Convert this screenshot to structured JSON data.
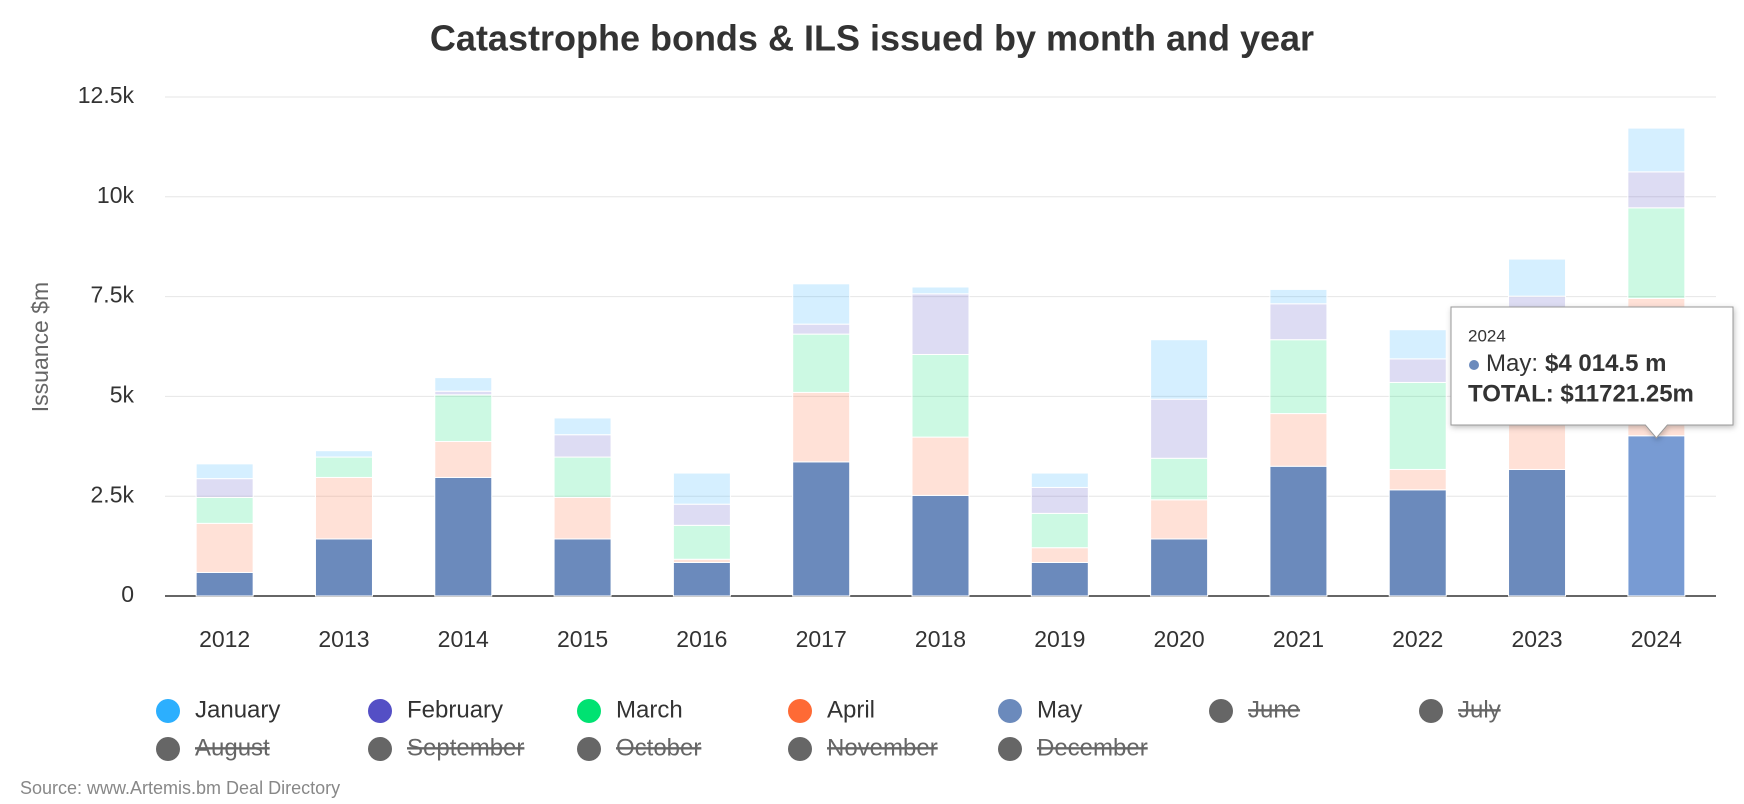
{
  "chart_data": {
    "type": "stacked_bar",
    "title": "Catastrophe bonds & ILS issued by month and year",
    "y_label": "Issuance $m",
    "source": "Source: www.Artemis.bm Deal Directory",
    "categories": [
      "2012",
      "2013",
      "2014",
      "2015",
      "2016",
      "2017",
      "2018",
      "2019",
      "2020",
      "2021",
      "2022",
      "2023",
      "2024"
    ],
    "ylim": [
      0,
      12500
    ],
    "yticks": [
      0,
      {
        "value": 2500,
        "label": "2.5k"
      },
      {
        "value": 5000,
        "label": "5k"
      },
      {
        "value": 7500,
        "label": "7.5k"
      },
      {
        "value": 10000,
        "label": "10k"
      },
      {
        "value": 12500,
        "label": "12.5k"
      }
    ],
    "grid": true,
    "series": [
      {
        "name": "January",
        "color": "#2caffe",
        "visible": true,
        "values": [
          370,
          160,
          340,
          420,
          780,
          1010,
          170,
          360,
          1490,
          360,
          730,
          930,
          1096.75
        ]
      },
      {
        "name": "February",
        "color": "#544fc5",
        "visible": true,
        "values": [
          470,
          0,
          90,
          560,
          530,
          250,
          1520,
          650,
          1480,
          900,
          590,
          740,
          900
        ]
      },
      {
        "name": "March",
        "color": "#00e272",
        "visible": true,
        "values": [
          650,
          510,
          1170,
          1010,
          850,
          1460,
          2070,
          860,
          1040,
          1850,
          2180,
          2100,
          2270
        ]
      },
      {
        "name": "April",
        "color": "#fe6a35",
        "visible": true,
        "values": [
          1230,
          1540,
          900,
          1040,
          80,
          1740,
          1460,
          370,
          980,
          1320,
          510,
          1500,
          3440
        ]
      },
      {
        "name": "May",
        "color": "#6b8abc",
        "visible": true,
        "values": [
          590,
          1430,
          2970,
          1430,
          840,
          3360,
          2520,
          840,
          1430,
          3250,
          2660,
          3170,
          4014.5
        ]
      },
      {
        "name": "June",
        "visible": false
      },
      {
        "name": "July",
        "visible": false
      },
      {
        "name": "August",
        "visible": false
      },
      {
        "name": "September",
        "visible": false
      },
      {
        "name": "October",
        "visible": false
      },
      {
        "name": "November",
        "visible": false
      },
      {
        "name": "December",
        "visible": false
      }
    ],
    "tooltip": {
      "category": "2024",
      "series_label": "May:",
      "value_label": "$4 014.5 m",
      "total_label": "TOTAL: $11721.25m"
    }
  }
}
